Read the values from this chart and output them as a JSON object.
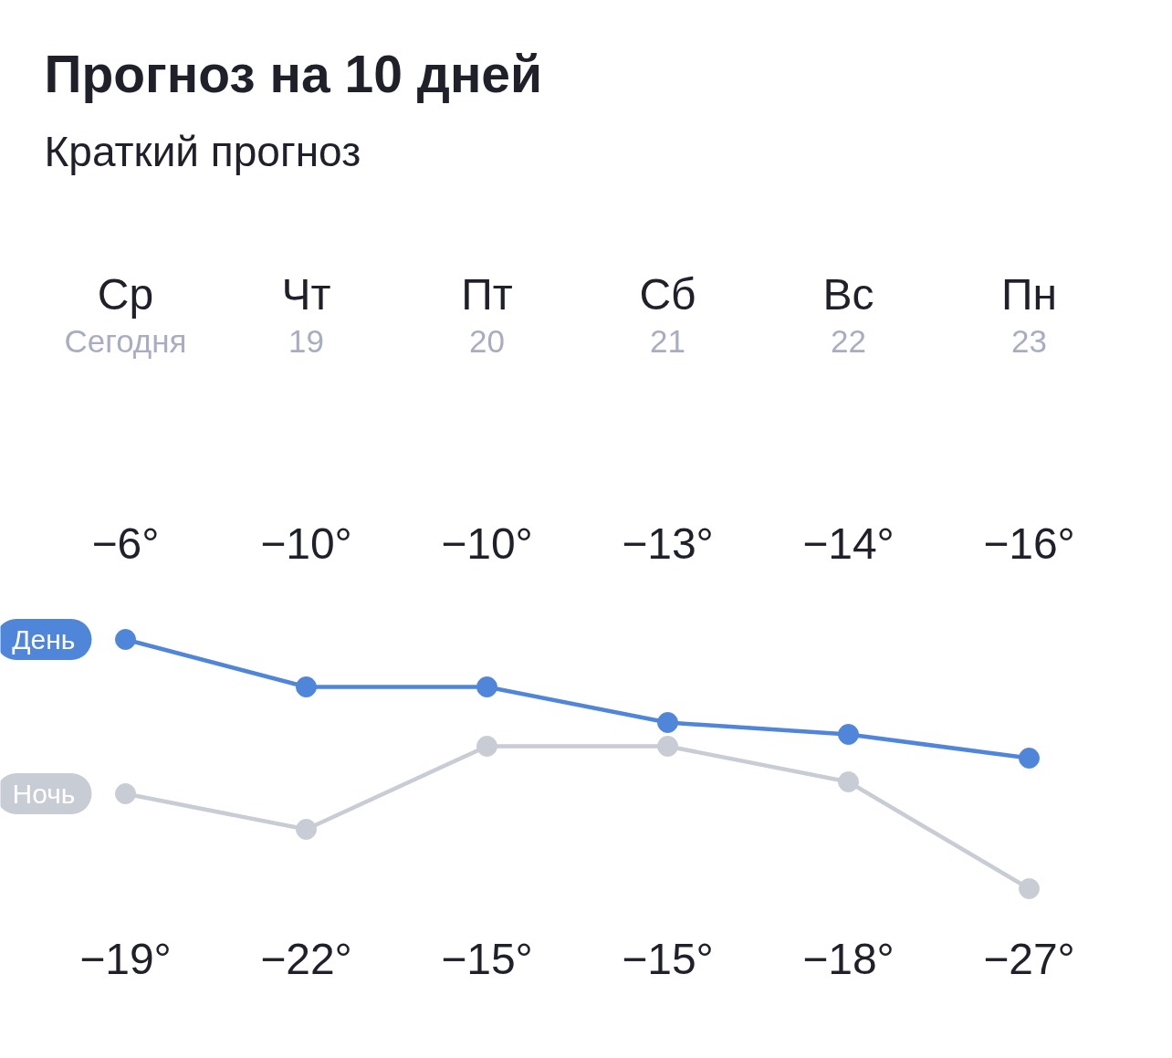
{
  "chart_data": {
    "type": "line",
    "title": "Прогноз на 10 дней",
    "subtitle": "Краткий прогноз",
    "categories": [
      "Ср\nСегодня",
      "Чт\n19",
      "Пт\n20",
      "Сб\n21",
      "Вс\n22",
      "Пн\n23"
    ],
    "series": [
      {
        "name": "День",
        "color": "#4f86d9",
        "values": [
          -6,
          -10,
          -10,
          -13,
          -14,
          -16
        ],
        "value_labels": [
          "−6°",
          "−10°",
          "−10°",
          "−13°",
          "−14°",
          "−16°"
        ]
      },
      {
        "name": "Ночь",
        "color": "#c8ccd5",
        "values": [
          -19,
          -22,
          -15,
          -15,
          -18,
          -27
        ],
        "value_labels": [
          "−19°",
          "−22°",
          "−15°",
          "−15°",
          "−18°",
          "−27°"
        ]
      }
    ],
    "marker": "circle",
    "line_style": "solid",
    "grid": false,
    "tick_labels": "x"
  }
}
